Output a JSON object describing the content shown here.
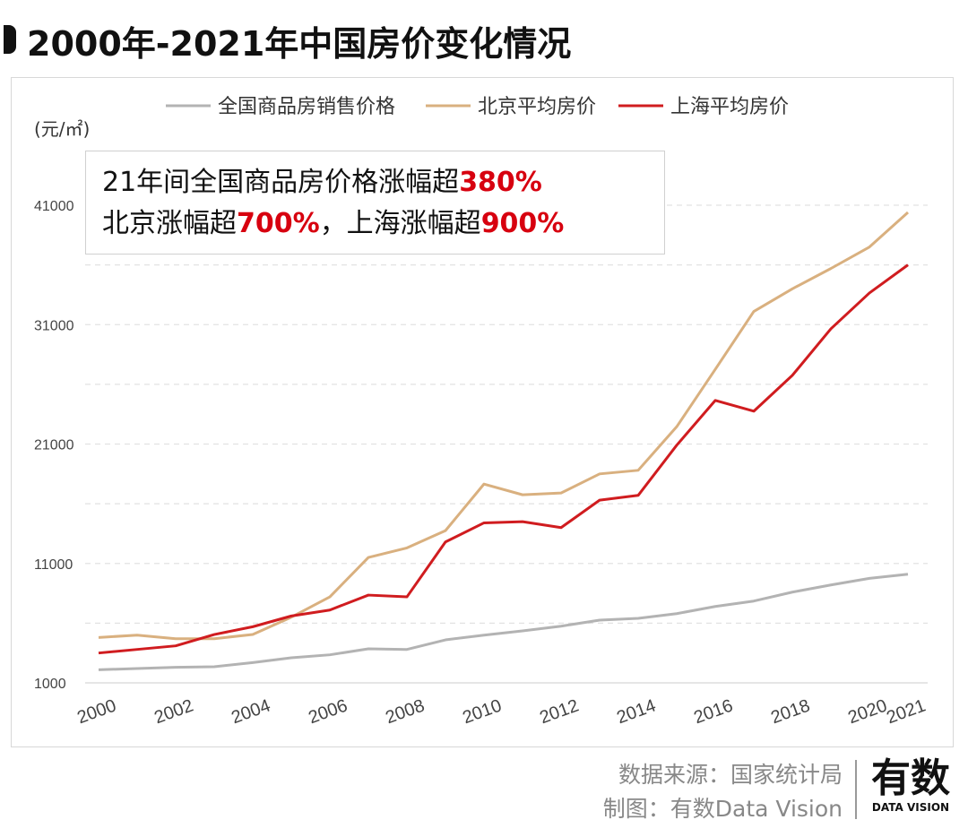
{
  "title": "2000年-2021年中国房价变化情况",
  "annotation": {
    "line1_text": "21年间全国商品房价格涨幅超",
    "line1_value": "380%",
    "line2_text_a": "北京涨幅超",
    "line2_value_a": "700%",
    "line2_sep": "，上海涨幅超",
    "line2_value_b": "900%"
  },
  "footer": {
    "source": "数据来源：国家统计局",
    "credit": "制图：有数Data Vision"
  },
  "logo": {
    "cn": "有数",
    "en": "DATA VISION"
  },
  "chart_data": {
    "type": "line",
    "title": "",
    "ylabel": "(元/㎡)",
    "xlabel": "",
    "ylim": [
      1000,
      41000
    ],
    "yticks": [
      1000,
      11000,
      21000,
      31000,
      41000
    ],
    "grid": true,
    "legend_position": "top",
    "x": [
      2000,
      2001,
      2002,
      2003,
      2004,
      2005,
      2006,
      2007,
      2008,
      2009,
      2010,
      2011,
      2012,
      2013,
      2014,
      2015,
      2016,
      2017,
      2018,
      2019,
      2020,
      2021
    ],
    "xtick_labels": [
      "2000",
      "2002",
      "2004",
      "2006",
      "2008",
      "2010",
      "2012",
      "2014",
      "2016",
      "2018",
      "2020",
      "2021"
    ],
    "series": [
      {
        "name": "全国商品房销售价格",
        "color": "#b3b3b3",
        "values": [
          2100,
          2200,
          2300,
          2350,
          2700,
          3100,
          3350,
          3850,
          3800,
          4600,
          5000,
          5350,
          5750,
          6250,
          6400,
          6800,
          7400,
          7850,
          8600,
          9200,
          9750,
          10100
        ]
      },
      {
        "name": "北京平均房价",
        "color": "#d9b07f",
        "values": [
          4800,
          5000,
          4700,
          4700,
          5050,
          6500,
          8200,
          11500,
          12300,
          13750,
          17650,
          16750,
          16900,
          18500,
          18800,
          22450,
          27250,
          32100,
          34000,
          35700,
          37500,
          40400
        ]
      },
      {
        "name": "上海平均房价",
        "color": "#d01c1f",
        "values": [
          3500,
          3800,
          4100,
          5050,
          5700,
          6600,
          7100,
          8350,
          8200,
          12800,
          14400,
          14500,
          14000,
          16300,
          16700,
          20900,
          24650,
          23750,
          26750,
          30650,
          33650,
          36000
        ]
      }
    ]
  }
}
